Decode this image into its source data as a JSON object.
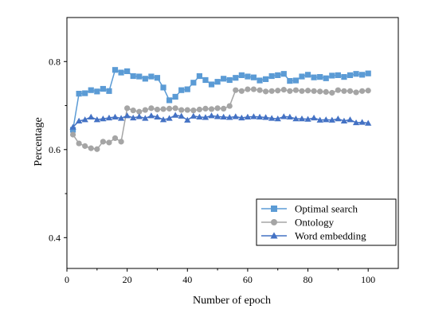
{
  "chart_data": {
    "type": "line",
    "xlabel": "Number of epoch",
    "ylabel": "Percentage",
    "xlim": [
      0,
      110
    ],
    "ylim": [
      0.33,
      0.9
    ],
    "xticks": [
      0,
      20,
      40,
      60,
      80,
      100
    ],
    "yticks": [
      0.4,
      0.6,
      0.8
    ],
    "xtick_labels": [
      "0",
      "20",
      "40",
      "60",
      "80",
      "100"
    ],
    "ytick_labels": [
      "0.4",
      "0.6",
      "0.8"
    ],
    "grid": false,
    "legend_position": "bottom-right",
    "x": [
      2,
      4,
      6,
      8,
      10,
      12,
      14,
      16,
      18,
      20,
      22,
      24,
      26,
      28,
      30,
      32,
      34,
      36,
      38,
      40,
      42,
      44,
      46,
      48,
      50,
      52,
      54,
      56,
      58,
      60,
      62,
      64,
      66,
      68,
      70,
      72,
      74,
      76,
      78,
      80,
      82,
      84,
      86,
      88,
      90,
      92,
      94,
      96,
      98,
      100
    ],
    "series": [
      {
        "name": "Optimal search",
        "color": "#5b9bd5",
        "marker": "square",
        "values": [
          0.645,
          0.727,
          0.728,
          0.735,
          0.732,
          0.738,
          0.733,
          0.781,
          0.775,
          0.778,
          0.767,
          0.766,
          0.761,
          0.766,
          0.763,
          0.741,
          0.712,
          0.72,
          0.735,
          0.737,
          0.752,
          0.767,
          0.758,
          0.748,
          0.754,
          0.761,
          0.758,
          0.763,
          0.769,
          0.766,
          0.764,
          0.757,
          0.76,
          0.767,
          0.769,
          0.772,
          0.756,
          0.757,
          0.766,
          0.77,
          0.764,
          0.765,
          0.762,
          0.768,
          0.769,
          0.765,
          0.769,
          0.772,
          0.77,
          0.773
        ]
      },
      {
        "name": "Ontology",
        "color": "#a5a5a5",
        "marker": "circle",
        "values": [
          0.634,
          0.614,
          0.608,
          0.603,
          0.601,
          0.618,
          0.616,
          0.626,
          0.618,
          0.694,
          0.689,
          0.686,
          0.69,
          0.694,
          0.691,
          0.692,
          0.693,
          0.694,
          0.69,
          0.69,
          0.689,
          0.691,
          0.693,
          0.692,
          0.694,
          0.693,
          0.699,
          0.735,
          0.733,
          0.737,
          0.737,
          0.735,
          0.732,
          0.733,
          0.734,
          0.736,
          0.733,
          0.735,
          0.733,
          0.734,
          0.733,
          0.732,
          0.731,
          0.729,
          0.735,
          0.733,
          0.733,
          0.73,
          0.733,
          0.734
        ]
      },
      {
        "name": "Word embedding",
        "color": "#4472c4",
        "marker": "triangle",
        "values": [
          0.651,
          0.665,
          0.668,
          0.674,
          0.668,
          0.67,
          0.672,
          0.674,
          0.671,
          0.677,
          0.672,
          0.675,
          0.671,
          0.677,
          0.674,
          0.668,
          0.671,
          0.678,
          0.676,
          0.667,
          0.676,
          0.674,
          0.673,
          0.677,
          0.675,
          0.674,
          0.673,
          0.675,
          0.672,
          0.674,
          0.675,
          0.674,
          0.673,
          0.671,
          0.67,
          0.675,
          0.674,
          0.67,
          0.67,
          0.669,
          0.672,
          0.667,
          0.668,
          0.667,
          0.67,
          0.665,
          0.668,
          0.661,
          0.662,
          0.66
        ]
      }
    ]
  }
}
